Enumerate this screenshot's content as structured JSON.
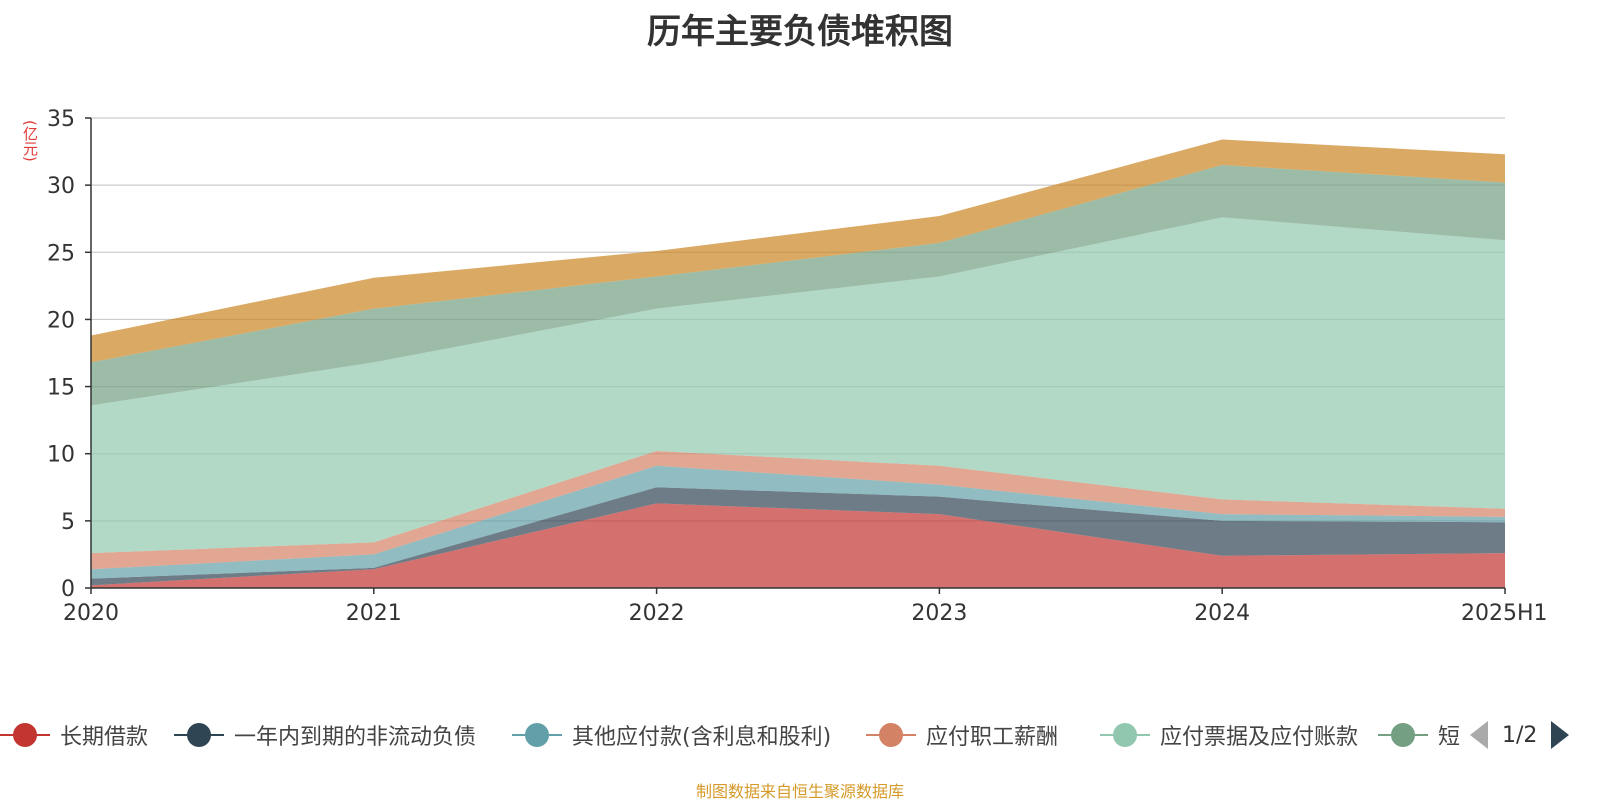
{
  "chart_data": {
    "type": "area",
    "title": "历年主要负债堆积图",
    "unit_label": "(亿元)",
    "x": [
      "2020",
      "2021",
      "2022",
      "2023",
      "2024",
      "2025H1"
    ],
    "ylim": [
      0,
      35
    ],
    "yticks": [
      0,
      5,
      10,
      15,
      20,
      25,
      30,
      35
    ],
    "stacked": true,
    "grid": true,
    "legend_position": "bottom",
    "series": [
      {
        "name": "长期借款",
        "color": "#c23531",
        "values": [
          0.2,
          1.4,
          6.3,
          5.5,
          2.4,
          2.6
        ]
      },
      {
        "name": "一年内到期的非流动负债",
        "color": "#2f4554",
        "values": [
          0.5,
          0.1,
          1.2,
          1.3,
          2.6,
          2.3
        ]
      },
      {
        "name": "其他应付款(含利息和股利)",
        "color": "#61a0a8",
        "values": [
          0.7,
          1.0,
          1.6,
          0.9,
          0.5,
          0.4
        ]
      },
      {
        "name": "应付职工薪酬",
        "color": "#d48265",
        "values": [
          1.2,
          0.9,
          1.1,
          1.4,
          1.1,
          0.6
        ]
      },
      {
        "name": "应付票据及应付账款",
        "color": "#91c7ae",
        "values": [
          11.0,
          13.4,
          10.6,
          14.1,
          21.0,
          20.0
        ]
      },
      {
        "name": "短期借款",
        "color": "#749f83",
        "values": [
          3.2,
          4.0,
          2.4,
          2.5,
          3.9,
          4.3
        ]
      },
      {
        "name": "",
        "color": "#ca8622",
        "values": [
          2.0,
          2.3,
          1.9,
          2.0,
          1.9,
          2.1
        ]
      }
    ]
  },
  "legend": {
    "items": [
      {
        "label": "长期借款",
        "color": "#c23531"
      },
      {
        "label": "一年内到期的非流动负债",
        "color": "#2f4554"
      },
      {
        "label": "其他应付款(含利息和股利)",
        "color": "#61a0a8"
      },
      {
        "label": "应付职工薪酬",
        "color": "#d48265"
      },
      {
        "label": "应付票据及应付账款",
        "color": "#91c7ae"
      },
      {
        "label": "短",
        "color": "#749f83"
      }
    ],
    "page_text": "1/2"
  },
  "source_note": "制图数据来自恒生聚源数据库"
}
